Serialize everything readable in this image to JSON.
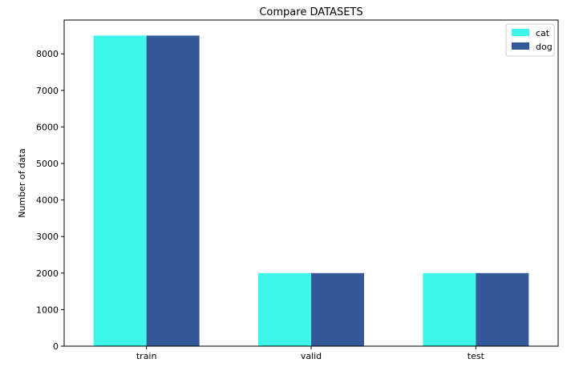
{
  "chart_data": {
    "type": "bar",
    "title": "Compare DATASETS",
    "xlabel": "",
    "ylabel": "Number of data",
    "categories": [
      "train",
      "valid",
      "test"
    ],
    "series": [
      {
        "name": "cat",
        "values": [
          8500,
          2000,
          2000
        ],
        "color": "#3ef5e9"
      },
      {
        "name": "dog",
        "values": [
          8500,
          2000,
          2000
        ],
        "color": "#355898"
      }
    ],
    "ylim": [
      0,
      8925
    ],
    "yticks": [
      0,
      1000,
      2000,
      3000,
      4000,
      5000,
      6000,
      7000,
      8000
    ],
    "grid": false,
    "legend_position": "top-right"
  }
}
